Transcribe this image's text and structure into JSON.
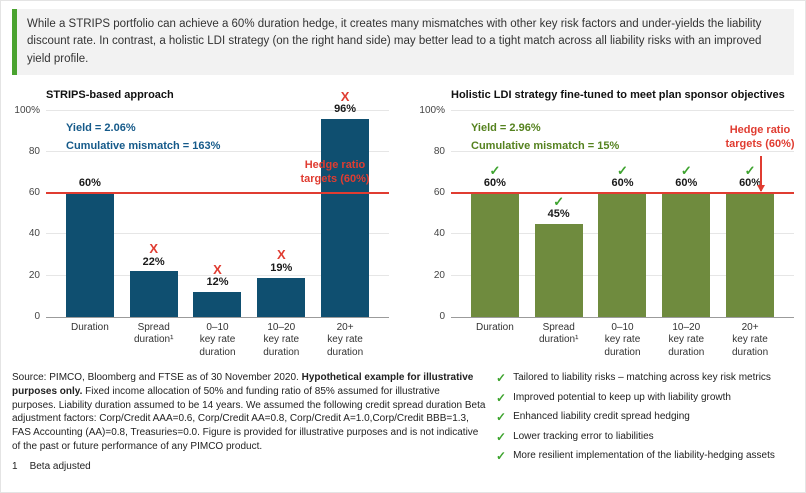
{
  "intro": {
    "text": "While a STRIPS portfolio can achieve a 60% duration hedge, it creates many mismatches with other key risk factors and under-yields the liability discount rate. In contrast, a holistic LDI strategy (on the right hand side) may better lead to a tight match across all liability risks with an improved yield profile."
  },
  "colors": {
    "navy_bar": "#0f4f70",
    "olive_bar": "#6f8b3e",
    "blue_annotation": "#155a8a",
    "green_annotation": "#55821f",
    "check_green": "#3da32e",
    "alert_red": "#e03c31",
    "intro_border_green": "#4aa32f"
  },
  "icons": {
    "check_glyph": "✓",
    "x_glyph": "X"
  },
  "chart_data": [
    {
      "type": "bar",
      "title": "STRIPS-based approach",
      "categories": [
        "Duration",
        "Spread\nduration¹",
        "0–10\nkey rate\nduration",
        "10–20\nkey rate\nduration",
        "20+\nkey rate\nduration"
      ],
      "values": [
        60,
        22,
        12,
        19,
        96
      ],
      "value_labels": [
        "60%",
        "22%",
        "12%",
        "19%",
        "96%"
      ],
      "marks": [
        "",
        "x",
        "x",
        "x",
        "x"
      ],
      "yticks": [
        0,
        20,
        40,
        60,
        80,
        100
      ],
      "ytick_labels": [
        "0",
        "20",
        "40",
        "60",
        "80",
        "100%"
      ],
      "ylim": [
        0,
        100
      ],
      "grid": true,
      "bar_color": "#0f4f70",
      "annotation_color": "#155a8a",
      "yield_label": "Yield = 2.06%",
      "mismatch_label": "Cumulative mismatch = 163%",
      "hedge_line": 60,
      "hedge_label": "Hedge ratio targets (60%)",
      "hedge_label_position": "inside-right"
    },
    {
      "type": "bar",
      "title": "Holistic LDI strategy fine-tuned to meet plan sponsor objectives",
      "categories": [
        "Duration",
        "Spread\nduration¹",
        "0–10\nkey rate\nduration",
        "10–20\nkey rate\nduration",
        "20+\nkey rate\nduration"
      ],
      "values": [
        60,
        45,
        60,
        60,
        60
      ],
      "value_labels": [
        "60%",
        "45%",
        "60%",
        "60%",
        "60%"
      ],
      "marks": [
        "check",
        "check",
        "check",
        "check",
        "check"
      ],
      "yticks": [
        0,
        20,
        40,
        60,
        80,
        100
      ],
      "ytick_labels": [
        "0",
        "20",
        "40",
        "60",
        "80",
        "100%"
      ],
      "ylim": [
        0,
        100
      ],
      "grid": true,
      "bar_color": "#6f8b3e",
      "annotation_color": "#55821f",
      "yield_label": "Yield = 2.96%",
      "mismatch_label": "Cumulative mismatch = 15%",
      "hedge_line": 60,
      "hedge_label": "Hedge ratio targets (60%)",
      "hedge_label_position": "outside-arrow"
    }
  ],
  "footer": {
    "source_prefix": "Source: PIMCO, Bloomberg and FTSE as of 30 November 2020. ",
    "source_bold": "Hypothetical example for illustrative purposes only.",
    "source_rest": " Fixed income allocation of 50% and funding ratio of 85% assumed for illustrative purposes. Liability duration assumed to be 14 years. We assumed the following credit spread duration Beta adjustment factors: Corp/Credit AAA=0.6, Corp/Credit AA=0.8, Corp/Credit A=1.0,Corp/Credit BBB=1.3, FAS Accounting (AA)=0.8, Treasuries=0.0. Figure is provided for illustrative purposes and is not indicative of the past or future performance of any PIMCO product.",
    "footnote_number": "1",
    "footnote_text": "Beta adjusted"
  },
  "benefits": [
    "Tailored to liability risks – matching across key risk metrics",
    "Improved potential to keep up with liability growth",
    "Enhanced liability credit spread hedging",
    "Lower tracking error to liabilities",
    "More resilient implementation of the liability-hedging assets"
  ]
}
